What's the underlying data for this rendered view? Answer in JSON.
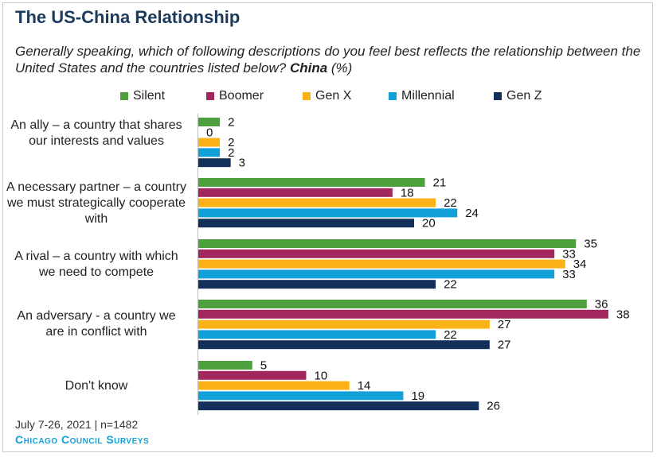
{
  "title": "The US-China Relationship",
  "subtitle": {
    "text": "Generally speaking, which of following descriptions do you feel best reflects the relationship between the United States and the countries listed below? ",
    "bold": "China",
    "suffix": " (%)"
  },
  "footer": {
    "date_line": "July 7-26, 2021 | n=1482",
    "brand": "Chicago Council Surveys"
  },
  "colors": {
    "title": "#1b3a5c",
    "brand": "#12a0d8"
  },
  "chart_data": {
    "type": "bar",
    "orientation": "horizontal",
    "grouped": true,
    "categories": [
      "An ally – a country that shares our interests and values",
      "A necessary partner – a country we must strategically cooperate with",
      "A rival – a country with which we need to compete",
      "An adversary - a country we are in conflict with",
      "Don't know"
    ],
    "series": [
      {
        "name": "Silent",
        "color": "#4ea03f",
        "values": [
          2,
          21,
          35,
          36,
          5
        ]
      },
      {
        "name": "Boomer",
        "color": "#a3275f",
        "values": [
          0,
          18,
          33,
          38,
          10
        ]
      },
      {
        "name": "Gen X",
        "color": "#fbb216",
        "values": [
          2,
          22,
          34,
          27,
          14
        ]
      },
      {
        "name": "Millennial",
        "color": "#12a0d8",
        "values": [
          2,
          24,
          33,
          22,
          19
        ]
      },
      {
        "name": "Gen Z",
        "color": "#12305a",
        "values": [
          3,
          20,
          22,
          27,
          26
        ]
      }
    ],
    "xlim": [
      0,
      40
    ],
    "legend_position": "top",
    "grid": false,
    "data_labels": true
  }
}
